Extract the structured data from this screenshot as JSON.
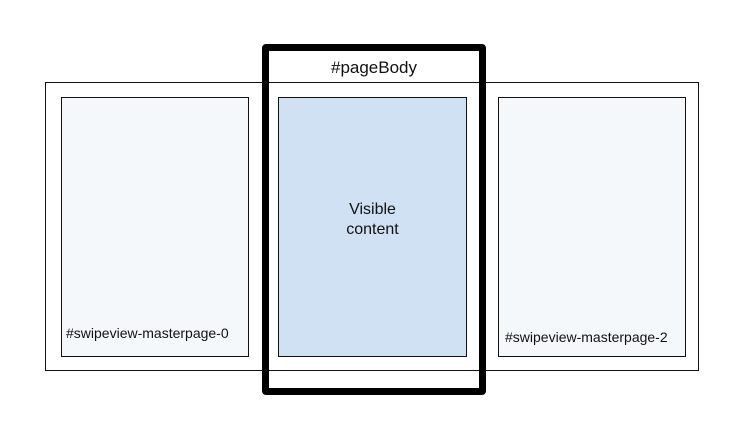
{
  "diagram": {
    "viewport_label": "#pageBody",
    "center_text_line1": "Visible",
    "center_text_line2": "content",
    "left_page_label": "#swipeview-masterpage-0",
    "right_page_label": "#swipeview-masterpage-2"
  },
  "colors": {
    "border": "#111111",
    "viewport_border": "#000000",
    "side_page_fill": "#f4f8fb",
    "center_page_fill": "#cfe1f3",
    "background": "#ffffff"
  }
}
